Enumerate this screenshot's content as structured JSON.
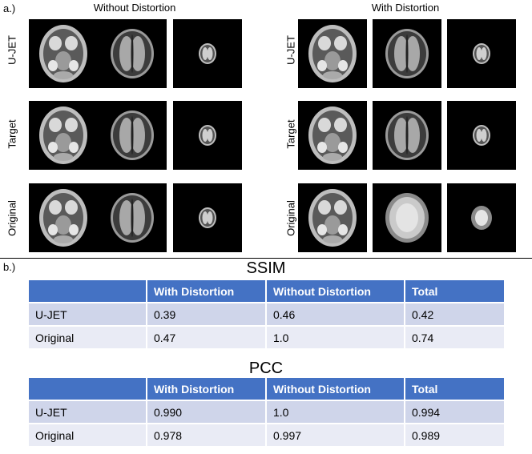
{
  "panel_a": {
    "label": "a.)",
    "without_title": "Without Distortion",
    "with_title": "With Distortion",
    "row_labels": [
      "U-JET",
      "Target",
      "Original"
    ]
  },
  "panel_b": {
    "label": "b.)"
  },
  "ssim": {
    "title": "SSIM",
    "headers": [
      "",
      "With Distortion",
      "Without Distortion",
      "Total"
    ],
    "rows": [
      [
        "U-JET",
        "0.39",
        "0.46",
        "0.42"
      ],
      [
        "Original",
        "0.47",
        "1.0",
        "0.74"
      ]
    ]
  },
  "pcc": {
    "title": "PCC",
    "headers": [
      "",
      "With Distortion",
      "Without Distortion",
      "Total"
    ],
    "rows": [
      [
        "U-JET",
        "0.990",
        "1.0",
        "0.994"
      ],
      [
        "Original",
        "0.978",
        "0.997",
        "0.989"
      ]
    ]
  }
}
